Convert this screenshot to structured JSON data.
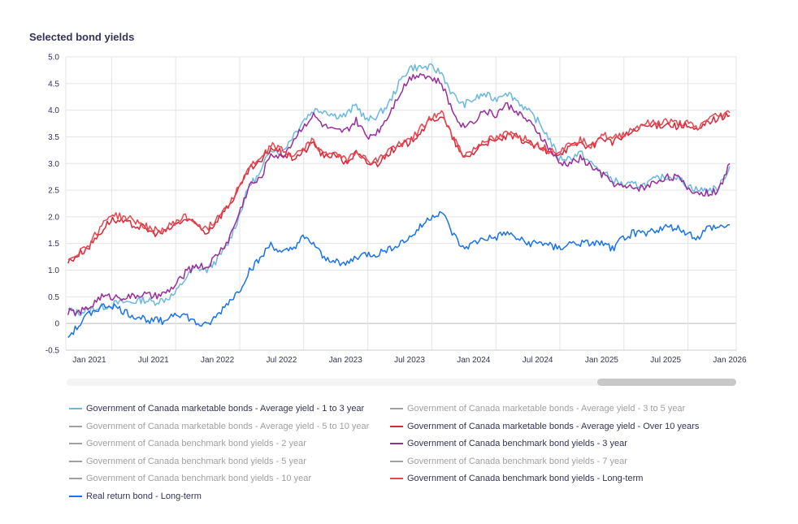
{
  "chart_data": {
    "type": "line",
    "title": "Selected bond yields",
    "ylim": [
      -0.5,
      5.0
    ],
    "yticks": [
      "5.0",
      "4.5",
      "4.0",
      "3.5",
      "3.0",
      "2.5",
      "2.0",
      "1.5",
      "1.0",
      "0.5",
      "0",
      "-0.5"
    ],
    "xticks": [
      "Jan 2021",
      "Jul 2021",
      "Jan 2022",
      "Jul 2022",
      "Jan 2023",
      "Jul 2023",
      "Jan 2024",
      "Jul 2024",
      "Jan 2025",
      "Jul 2025",
      "Jan 2026"
    ],
    "grid": true,
    "legend_position": "bottom",
    "x_start": "2020-11",
    "series": [
      {
        "name": "Government of Canada marketable bonds - Average yield - 1 to 3 year",
        "color": "#6bb8df",
        "visible": true,
        "values": [
          0.25,
          0.2,
          0.25,
          0.3,
          0.35,
          0.4,
          0.4,
          0.45,
          0.4,
          0.45,
          0.55,
          0.85,
          1.05,
          1.0,
          1.2,
          1.5,
          2.0,
          2.6,
          2.8,
          3.3,
          3.2,
          3.5,
          3.8,
          4.0,
          4.0,
          3.9,
          3.9,
          4.1,
          3.8,
          3.9,
          4.1,
          4.5,
          4.8,
          4.8,
          4.8,
          4.7,
          4.3,
          4.1,
          4.2,
          4.3,
          4.2,
          4.35,
          4.2,
          4.0,
          3.8,
          3.5,
          3.1,
          3.1,
          3.2,
          3.0,
          2.85,
          2.7,
          2.6,
          2.6,
          2.6,
          2.7,
          2.75,
          2.75,
          2.6,
          2.5,
          2.5,
          2.55,
          2.95
        ]
      },
      {
        "name": "Government of Canada marketable bonds - Average yield - 3 to 5 year",
        "color": "#aaaaaa",
        "visible": false
      },
      {
        "name": "Government of Canada marketable bonds - Average yield - 5 to 10 year",
        "color": "#aaaaaa",
        "visible": false
      },
      {
        "name": "Government of Canada marketable bonds - Average yield - Over 10 years",
        "color": "#d62839",
        "visible": true,
        "values": [
          1.15,
          1.3,
          1.45,
          1.7,
          1.95,
          1.9,
          1.85,
          1.8,
          1.7,
          1.7,
          1.85,
          1.95,
          1.85,
          1.7,
          1.95,
          2.2,
          2.5,
          2.9,
          3.0,
          3.3,
          3.2,
          3.1,
          3.2,
          3.4,
          3.1,
          3.2,
          3.0,
          3.2,
          3.0,
          3.0,
          3.2,
          3.3,
          3.4,
          3.6,
          3.8,
          3.9,
          3.5,
          3.1,
          3.2,
          3.4,
          3.4,
          3.5,
          3.5,
          3.4,
          3.3,
          3.2,
          3.2,
          3.3,
          3.4,
          3.3,
          3.5,
          3.4,
          3.5,
          3.6,
          3.7,
          3.7,
          3.75,
          3.7,
          3.7,
          3.6,
          3.8,
          3.85,
          3.9
        ]
      },
      {
        "name": "Government of Canada benchmark bond yields - 2 year",
        "color": "#aaaaaa",
        "visible": false
      },
      {
        "name": "Government of Canada benchmark bond yields - 3 year",
        "color": "#9b2d9b",
        "visible": true,
        "values": [
          0.22,
          0.2,
          0.3,
          0.5,
          0.5,
          0.5,
          0.5,
          0.55,
          0.5,
          0.55,
          0.7,
          0.95,
          1.1,
          1.05,
          1.3,
          1.55,
          2.05,
          2.6,
          2.7,
          3.2,
          3.1,
          3.4,
          3.7,
          3.9,
          3.7,
          3.6,
          3.6,
          3.8,
          3.5,
          3.6,
          3.9,
          4.3,
          4.6,
          4.7,
          4.6,
          4.5,
          4.0,
          3.7,
          3.8,
          4.0,
          3.9,
          4.1,
          4.0,
          3.8,
          3.6,
          3.3,
          3.0,
          3.0,
          3.1,
          2.95,
          2.8,
          2.65,
          2.55,
          2.55,
          2.55,
          2.65,
          2.75,
          2.75,
          2.55,
          2.45,
          2.45,
          2.5,
          3.0
        ]
      },
      {
        "name": "Government of Canada benchmark bond yields - 5 year",
        "color": "#aaaaaa",
        "visible": false
      },
      {
        "name": "Government of Canada benchmark bond yields - 7 year",
        "color": "#aaaaaa",
        "visible": false
      },
      {
        "name": "Government of Canada benchmark bond yields - 10 year",
        "color": "#aaaaaa",
        "visible": false
      },
      {
        "name": "Government of Canada benchmark bond yields - Long-term",
        "color": "#e8474f",
        "visible": true,
        "values": [
          1.2,
          1.35,
          1.5,
          1.8,
          2.05,
          2.0,
          1.95,
          1.85,
          1.75,
          1.75,
          1.9,
          2.0,
          1.9,
          1.75,
          2.0,
          2.25,
          2.55,
          2.95,
          3.05,
          3.35,
          3.25,
          3.15,
          3.25,
          3.45,
          3.15,
          3.25,
          3.05,
          3.25,
          3.05,
          3.05,
          3.25,
          3.35,
          3.45,
          3.65,
          3.85,
          3.95,
          3.55,
          3.15,
          3.25,
          3.45,
          3.45,
          3.55,
          3.55,
          3.45,
          3.35,
          3.25,
          3.25,
          3.35,
          3.45,
          3.35,
          3.55,
          3.45,
          3.55,
          3.65,
          3.75,
          3.75,
          3.8,
          3.75,
          3.75,
          3.65,
          3.85,
          3.9,
          3.95
        ]
      },
      {
        "name": "Real return bond - Long-term",
        "color": "#1a73e8",
        "visible": true,
        "values": [
          -0.25,
          -0.05,
          0.2,
          0.3,
          0.35,
          0.25,
          0.15,
          0.1,
          0.05,
          0.05,
          0.2,
          0.15,
          0.0,
          -0.05,
          0.15,
          0.4,
          0.6,
          1.0,
          1.2,
          1.5,
          1.3,
          1.4,
          1.6,
          1.5,
          1.2,
          1.2,
          1.1,
          1.25,
          1.3,
          1.3,
          1.4,
          1.5,
          1.6,
          1.8,
          2.0,
          2.1,
          1.7,
          1.4,
          1.5,
          1.6,
          1.6,
          1.7,
          1.6,
          1.5,
          1.5,
          1.5,
          1.4,
          1.5,
          1.5,
          1.5,
          1.5,
          1.4,
          1.6,
          1.7,
          1.7,
          1.75,
          1.8,
          1.8,
          1.7,
          1.6,
          1.8,
          1.8,
          1.85
        ]
      }
    ]
  }
}
